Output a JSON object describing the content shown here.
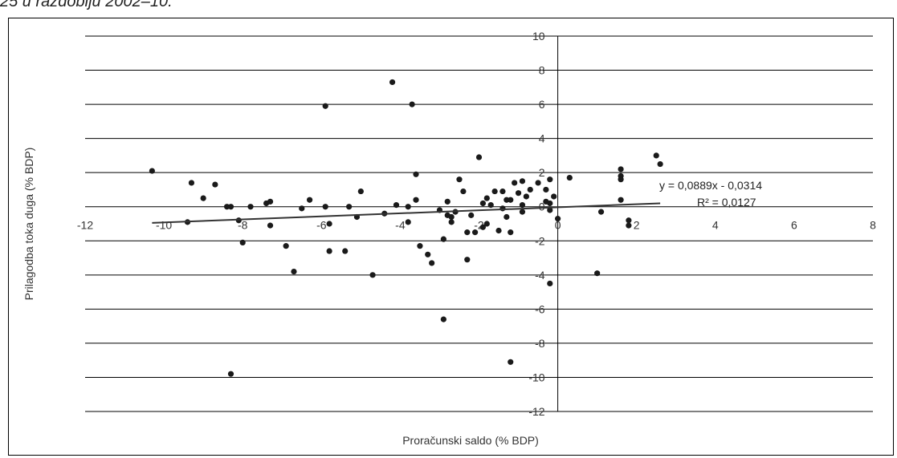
{
  "caption": "25 u razdoblju 2002–10.",
  "chart_data": {
    "type": "scatter",
    "title": "",
    "xlabel": "Proračunski saldo (% BDP)",
    "ylabel": "Prilagodba toka duga (% BDP)",
    "xlim": [
      -12,
      8
    ],
    "ylim": [
      -12,
      10
    ],
    "x_ticks": [
      -12,
      -10,
      -8,
      -6,
      -4,
      -2,
      0,
      2,
      4,
      6,
      8
    ],
    "y_ticks": [
      -12,
      -10,
      -8,
      -6,
      -4,
      -2,
      0,
      2,
      4,
      6,
      8,
      10
    ],
    "x_tick_labels": [
      "-12",
      "-10",
      "-8",
      "-6",
      "-4",
      "-2",
      "0",
      "2",
      "4",
      "6",
      "8"
    ],
    "y_tick_labels": [
      "-12",
      "-10",
      "-8",
      "-6",
      "-4",
      "-2",
      "0",
      "2",
      "4",
      "6",
      "8",
      "10"
    ],
    "grid": "horizontal",
    "legend": "none",
    "marker_color": "#1a1a1a",
    "trendline": {
      "slope": 0.0889,
      "intercept": -0.0314,
      "x_range": [
        -10.3,
        2.6
      ],
      "equation": "y = 0,0889x - 0,0314",
      "r2_label": "R² = 0,0127",
      "color": "#333333"
    },
    "series": [
      {
        "points": [
          [
            -10.3,
            2.1
          ],
          [
            -9.4,
            -0.9
          ],
          [
            -9.3,
            1.4
          ],
          [
            -9.0,
            0.5
          ],
          [
            -8.7,
            1.3
          ],
          [
            -8.4,
            0.0
          ],
          [
            -8.3,
            0.0
          ],
          [
            -8.3,
            -9.8
          ],
          [
            -8.1,
            -0.8
          ],
          [
            -8.0,
            -2.1
          ],
          [
            -7.8,
            0.0
          ],
          [
            -7.4,
            0.2
          ],
          [
            -7.3,
            0.3
          ],
          [
            -7.3,
            -1.1
          ],
          [
            -6.9,
            -2.3
          ],
          [
            -6.7,
            -3.8
          ],
          [
            -6.5,
            -0.1
          ],
          [
            -6.3,
            0.4
          ],
          [
            -5.9,
            0.0
          ],
          [
            -5.9,
            5.9
          ],
          [
            -5.8,
            -1.0
          ],
          [
            -5.8,
            -2.6
          ],
          [
            -5.4,
            -2.6
          ],
          [
            -5.3,
            0.0
          ],
          [
            -5.1,
            -0.6
          ],
          [
            -5.0,
            0.9
          ],
          [
            -4.7,
            -4.0
          ],
          [
            -4.4,
            -0.4
          ],
          [
            -4.2,
            7.3
          ],
          [
            -4.1,
            0.1
          ],
          [
            -3.8,
            -0.9
          ],
          [
            -3.8,
            0.0
          ],
          [
            -3.7,
            6.0
          ],
          [
            -3.6,
            1.9
          ],
          [
            -3.6,
            0.4
          ],
          [
            -3.5,
            -2.3
          ],
          [
            -3.3,
            -2.8
          ],
          [
            -3.2,
            -3.3
          ],
          [
            -3.0,
            -0.2
          ],
          [
            -2.9,
            -1.9
          ],
          [
            -2.9,
            -6.6
          ],
          [
            -2.8,
            -0.5
          ],
          [
            -2.8,
            0.3
          ],
          [
            -2.7,
            -0.9
          ],
          [
            -2.7,
            -0.6
          ],
          [
            -2.6,
            -0.3
          ],
          [
            -2.5,
            1.6
          ],
          [
            -2.4,
            0.9
          ],
          [
            -2.3,
            -1.5
          ],
          [
            -2.3,
            -3.1
          ],
          [
            -2.2,
            -0.5
          ],
          [
            -2.1,
            -1.5
          ],
          [
            -2.0,
            2.9
          ],
          [
            -1.9,
            0.2
          ],
          [
            -1.9,
            -1.2
          ],
          [
            -1.8,
            0.5
          ],
          [
            -1.8,
            -1.0
          ],
          [
            -1.7,
            0.1
          ],
          [
            -1.6,
            0.9
          ],
          [
            -1.5,
            -1.4
          ],
          [
            -1.4,
            0.9
          ],
          [
            -1.4,
            -0.1
          ],
          [
            -1.3,
            0.4
          ],
          [
            -1.3,
            -0.6
          ],
          [
            -1.2,
            0.4
          ],
          [
            -1.2,
            -1.5
          ],
          [
            -1.2,
            -9.1
          ],
          [
            -1.1,
            1.4
          ],
          [
            -1.0,
            0.8
          ],
          [
            -0.9,
            1.5
          ],
          [
            -0.9,
            0.1
          ],
          [
            -0.9,
            -0.3
          ],
          [
            -0.8,
            0.6
          ],
          [
            -0.7,
            1.0
          ],
          [
            -0.5,
            1.4
          ],
          [
            -0.3,
            1.0
          ],
          [
            -0.3,
            0.3
          ],
          [
            -0.2,
            1.6
          ],
          [
            -0.2,
            0.2
          ],
          [
            -0.2,
            -0.2
          ],
          [
            -0.2,
            -4.5
          ],
          [
            -0.1,
            0.6
          ],
          [
            0.0,
            -0.7
          ],
          [
            0.3,
            1.7
          ],
          [
            1.0,
            -3.9
          ],
          [
            1.1,
            -0.3
          ],
          [
            1.6,
            1.8
          ],
          [
            1.6,
            1.6
          ],
          [
            1.6,
            0.4
          ],
          [
            1.6,
            2.2
          ],
          [
            1.8,
            -0.8
          ],
          [
            1.8,
            -1.1
          ],
          [
            2.5,
            3.0
          ],
          [
            2.6,
            2.5
          ]
        ]
      }
    ]
  }
}
